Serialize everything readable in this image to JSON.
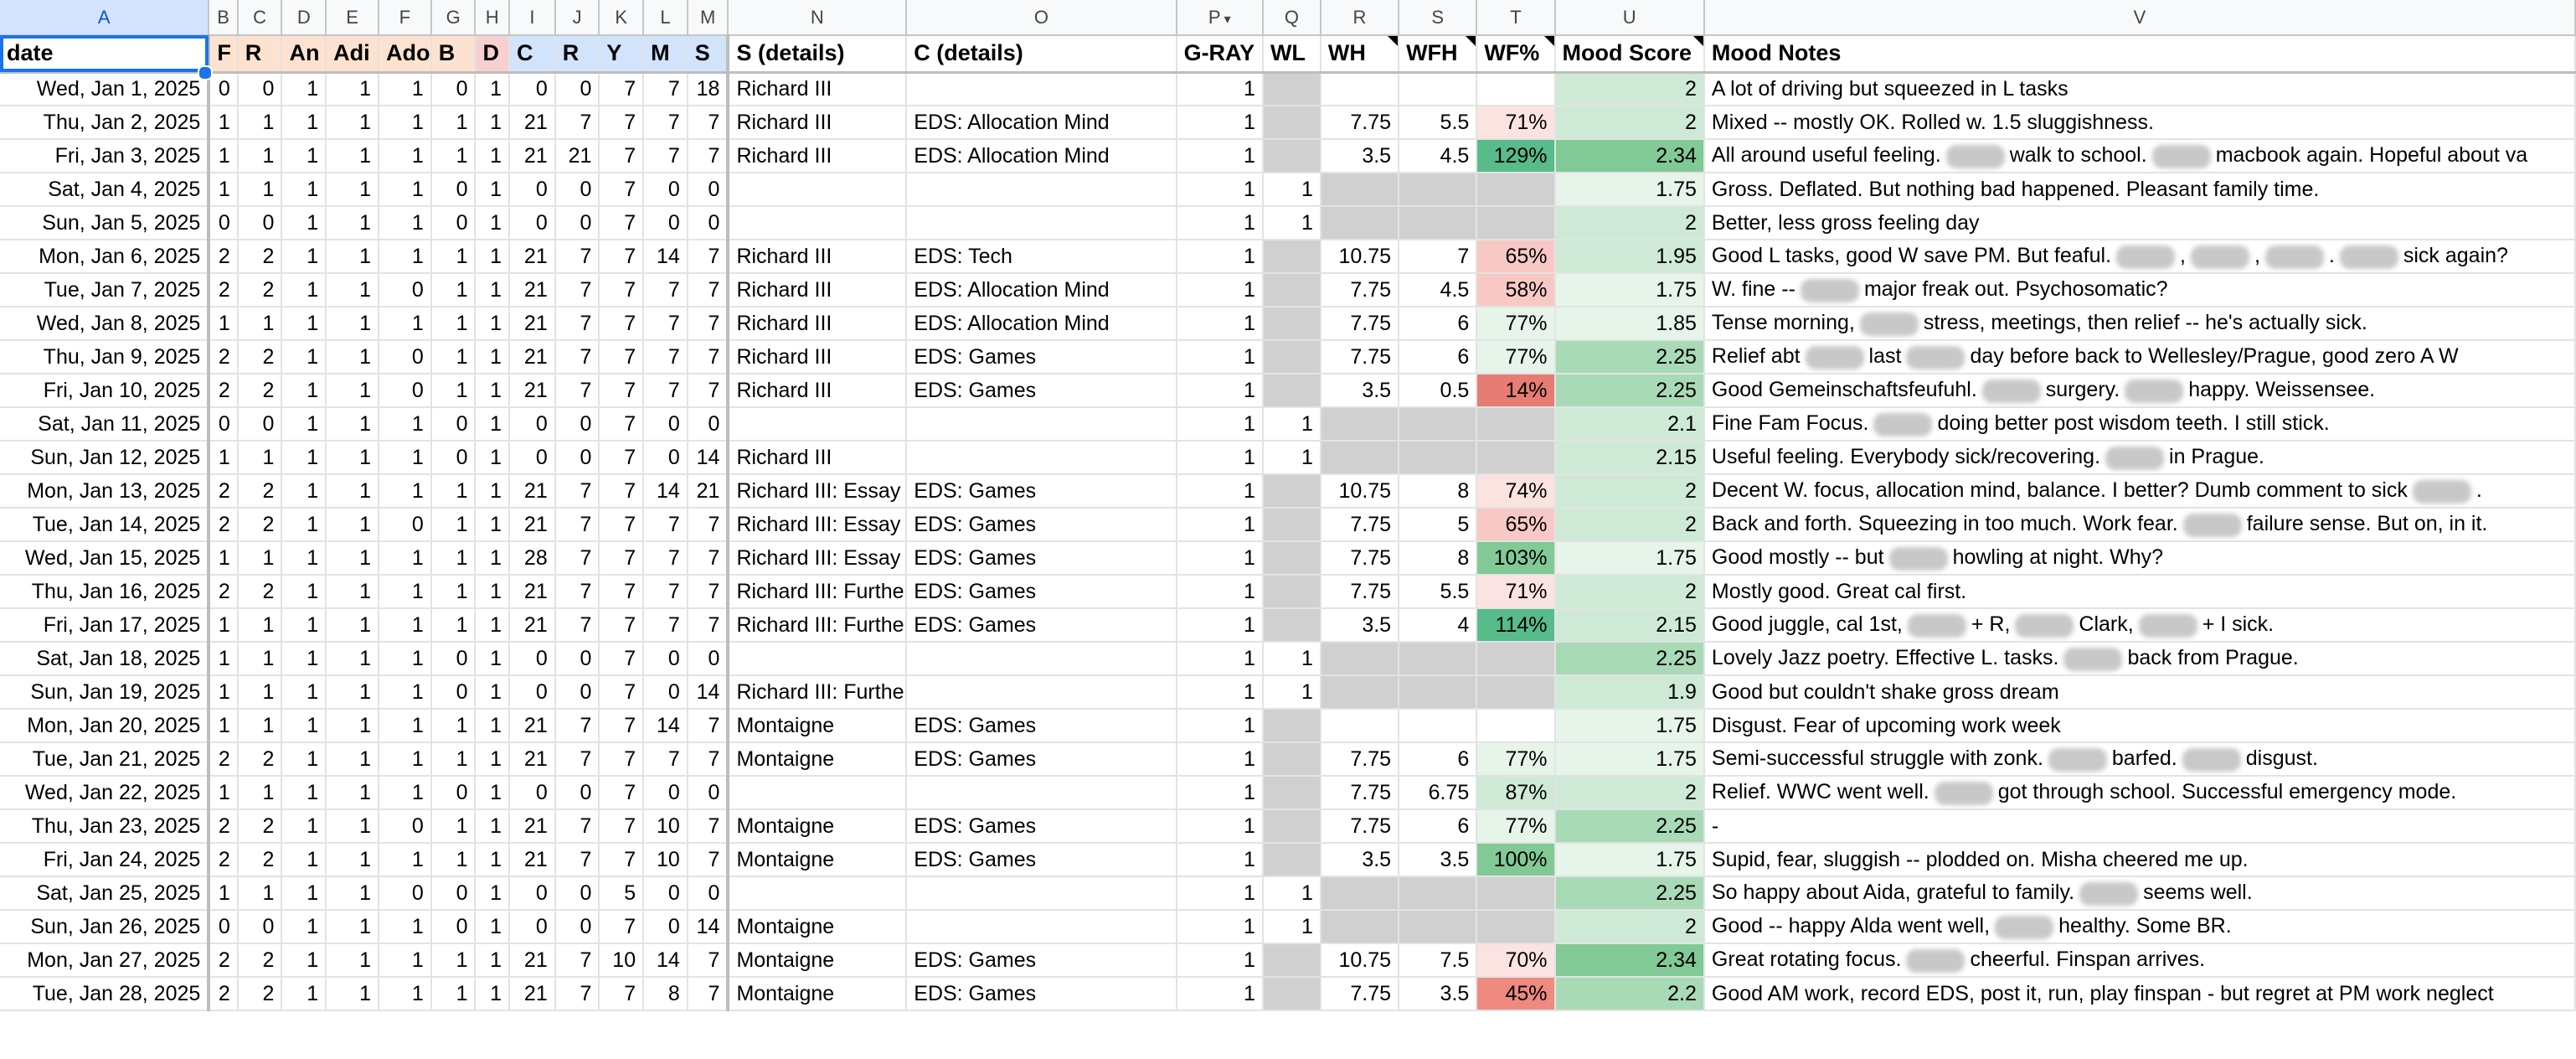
{
  "colors": {
    "peach": "#fde3cf",
    "red": "#f8d0cf",
    "blue": "#d2e3fc",
    "grey": "#d0d0d0",
    "green_scale": [
      "#e6f4ea",
      "#ceead6",
      "#a8dab5",
      "#81c995",
      "#57bb8a"
    ],
    "red_scale": [
      "#fbe3e1",
      "#f8c9c4",
      "#ee8a80",
      "#e67c73"
    ]
  },
  "columns": [
    "A",
    "B",
    "C",
    "D",
    "E",
    "F",
    "G",
    "H",
    "I",
    "J",
    "K",
    "L",
    "M",
    "N",
    "O",
    "P",
    "Q",
    "R",
    "S",
    "T",
    "U",
    "V"
  ],
  "headers": [
    "date",
    "F",
    "R",
    "An",
    "Adi",
    "Ado",
    "B",
    "D",
    "C",
    "R",
    "Y",
    "M",
    "S",
    "S (details)",
    "C (details)",
    "G-RAY",
    "WL",
    "WH",
    "WFH",
    "WF%",
    "Mood Score",
    "Mood Notes"
  ],
  "rows": [
    {
      "date": "Wed, Jan 1, 2025",
      "v": [
        "0",
        "0",
        "1",
        "1",
        "1",
        "0",
        "1",
        "0",
        "0",
        "7",
        "7",
        "18"
      ],
      "s": "Richard III",
      "c": "",
      "g": "1",
      "wl": "",
      "wh": "",
      "wfh": "",
      "wf": "",
      "mood": "2",
      "notes": [
        "A lot of driving but squeezed in L tasks"
      ]
    },
    {
      "date": "Thu, Jan 2, 2025",
      "v": [
        "1",
        "1",
        "1",
        "1",
        "1",
        "1",
        "1",
        "21",
        "7",
        "7",
        "7",
        "7"
      ],
      "s": "Richard III",
      "c": "EDS: Allocation Mind",
      "g": "1",
      "wl": "",
      "wh": "7.75",
      "wfh": "5.5",
      "wf": "71%",
      "mood": "2",
      "notes": [
        "Mixed -- mostly OK. Rolled w. 1.5 sluggishness."
      ]
    },
    {
      "date": "Fri, Jan 3, 2025",
      "v": [
        "1",
        "1",
        "1",
        "1",
        "1",
        "1",
        "1",
        "21",
        "21",
        "7",
        "7",
        "7"
      ],
      "s": "Richard III",
      "c": "EDS: Allocation Mind",
      "g": "1",
      "wl": "",
      "wh": "3.5",
      "wfh": "4.5",
      "wf": "129%",
      "mood": "2.34",
      "notes": [
        "All around useful feeling.",
        "walk to school.",
        "macbook again.  Hopeful about va"
      ]
    },
    {
      "date": "Sat, Jan 4, 2025",
      "v": [
        "1",
        "1",
        "1",
        "1",
        "1",
        "0",
        "1",
        "0",
        "0",
        "7",
        "0",
        "0"
      ],
      "s": "",
      "c": "",
      "g": "1",
      "wl": "1",
      "wh": "",
      "wfh": "",
      "wf": "",
      "mood": "1.75",
      "notes": [
        "Gross. Deflated. But nothing bad happened. Pleasant family time."
      ]
    },
    {
      "date": "Sun, Jan 5, 2025",
      "v": [
        "0",
        "0",
        "1",
        "1",
        "1",
        "0",
        "1",
        "0",
        "0",
        "7",
        "0",
        "0"
      ],
      "s": "",
      "c": "",
      "g": "1",
      "wl": "1",
      "wh": "",
      "wfh": "",
      "wf": "",
      "mood": "2",
      "notes": [
        "Better, less gross feeling day"
      ]
    },
    {
      "date": "Mon, Jan 6, 2025",
      "v": [
        "2",
        "2",
        "1",
        "1",
        "1",
        "1",
        "1",
        "21",
        "7",
        "7",
        "14",
        "7"
      ],
      "s": "Richard III",
      "c": "EDS: Tech",
      "g": "1",
      "wl": "",
      "wh": "10.75",
      "wfh": "7",
      "wf": "65%",
      "mood": "1.95",
      "notes": [
        "Good L tasks, good W save PM. But feaful.",
        ",",
        ",",
        ".",
        "sick again?"
      ]
    },
    {
      "date": "Tue, Jan 7, 2025",
      "v": [
        "2",
        "2",
        "1",
        "1",
        "0",
        "1",
        "1",
        "21",
        "7",
        "7",
        "7",
        "7"
      ],
      "s": "Richard III",
      "c": "EDS: Allocation Mind",
      "g": "1",
      "wl": "",
      "wh": "7.75",
      "wfh": "4.5",
      "wf": "58%",
      "mood": "1.75",
      "notes": [
        "W. fine --",
        "major freak out. Psychosomatic?"
      ]
    },
    {
      "date": "Wed, Jan 8, 2025",
      "v": [
        "1",
        "1",
        "1",
        "1",
        "1",
        "1",
        "1",
        "21",
        "7",
        "7",
        "7",
        "7"
      ],
      "s": "Richard III",
      "c": "EDS: Allocation Mind",
      "g": "1",
      "wl": "",
      "wh": "7.75",
      "wfh": "6",
      "wf": "77%",
      "mood": "1.85",
      "notes": [
        "Tense morning,",
        "stress, meetings, then relief -- he's actually sick."
      ]
    },
    {
      "date": "Thu, Jan 9, 2025",
      "v": [
        "2",
        "2",
        "1",
        "1",
        "0",
        "1",
        "1",
        "21",
        "7",
        "7",
        "7",
        "7"
      ],
      "s": "Richard III",
      "c": "EDS: Games",
      "g": "1",
      "wl": "",
      "wh": "7.75",
      "wfh": "6",
      "wf": "77%",
      "mood": "2.25",
      "notes": [
        "Relief abt",
        "last",
        "day before back to Wellesley/Prague, good zero A W"
      ]
    },
    {
      "date": "Fri, Jan 10, 2025",
      "v": [
        "2",
        "2",
        "1",
        "1",
        "0",
        "1",
        "1",
        "21",
        "7",
        "7",
        "7",
        "7"
      ],
      "s": "Richard III",
      "c": "EDS: Games",
      "g": "1",
      "wl": "",
      "wh": "3.5",
      "wfh": "0.5",
      "wf": "14%",
      "mood": "2.25",
      "notes": [
        "Good Gemeinschaftsfeufuhl.",
        "surgery.",
        "happy. Weissensee."
      ]
    },
    {
      "date": "Sat, Jan 11, 2025",
      "v": [
        "0",
        "0",
        "1",
        "1",
        "1",
        "0",
        "1",
        "0",
        "0",
        "7",
        "0",
        "0"
      ],
      "s": "",
      "c": "",
      "g": "1",
      "wl": "1",
      "wh": "",
      "wfh": "",
      "wf": "",
      "mood": "2.1",
      "notes": [
        "Fine Fam Focus.",
        "doing better post wisdom teeth. I still stick."
      ]
    },
    {
      "date": "Sun, Jan 12, 2025",
      "v": [
        "1",
        "1",
        "1",
        "1",
        "1",
        "0",
        "1",
        "0",
        "0",
        "7",
        "0",
        "14"
      ],
      "s": "Richard III",
      "c": "",
      "g": "1",
      "wl": "1",
      "wh": "",
      "wfh": "",
      "wf": "",
      "mood": "2.15",
      "notes": [
        "Useful feeling. Everybody sick/recovering.",
        "in Prague."
      ]
    },
    {
      "date": "Mon, Jan 13, 2025",
      "v": [
        "2",
        "2",
        "1",
        "1",
        "1",
        "1",
        "1",
        "21",
        "7",
        "7",
        "14",
        "21"
      ],
      "s": "Richard III: Essay",
      "c": "EDS: Games",
      "g": "1",
      "wl": "",
      "wh": "10.75",
      "wfh": "8",
      "wf": "74%",
      "mood": "2",
      "notes": [
        "Decent W. focus, allocation mind, balance. I better? Dumb comment to sick",
        "."
      ]
    },
    {
      "date": "Tue, Jan 14, 2025",
      "v": [
        "2",
        "2",
        "1",
        "1",
        "0",
        "1",
        "1",
        "21",
        "7",
        "7",
        "7",
        "7"
      ],
      "s": "Richard III: Essay",
      "c": "EDS: Games",
      "g": "1",
      "wl": "",
      "wh": "7.75",
      "wfh": "5",
      "wf": "65%",
      "mood": "2",
      "notes": [
        "Back and forth. Squeezing in too much. Work fear.",
        "failure sense. But on, in it."
      ]
    },
    {
      "date": "Wed, Jan 15, 2025",
      "v": [
        "1",
        "1",
        "1",
        "1",
        "1",
        "1",
        "1",
        "28",
        "7",
        "7",
        "7",
        "7"
      ],
      "s": "Richard III: Essay",
      "c": "EDS: Games",
      "g": "1",
      "wl": "",
      "wh": "7.75",
      "wfh": "8",
      "wf": "103%",
      "mood": "1.75",
      "notes": [
        "Good mostly -- but",
        "howling at night. Why?"
      ]
    },
    {
      "date": "Thu, Jan 16, 2025",
      "v": [
        "2",
        "2",
        "1",
        "1",
        "1",
        "1",
        "1",
        "21",
        "7",
        "7",
        "7",
        "7"
      ],
      "s": "Richard III: Further",
      "c": "EDS: Games",
      "g": "1",
      "wl": "",
      "wh": "7.75",
      "wfh": "5.5",
      "wf": "71%",
      "mood": "2",
      "notes": [
        "Mostly good. Great cal first."
      ]
    },
    {
      "date": "Fri, Jan 17, 2025",
      "v": [
        "1",
        "1",
        "1",
        "1",
        "1",
        "1",
        "1",
        "21",
        "7",
        "7",
        "7",
        "7"
      ],
      "s": "Richard III: Further",
      "c": "EDS: Games",
      "g": "1",
      "wl": "",
      "wh": "3.5",
      "wfh": "4",
      "wf": "114%",
      "mood": "2.15",
      "notes": [
        "Good juggle, cal 1st,",
        "+ R,",
        "Clark,",
        "+ I sick."
      ]
    },
    {
      "date": "Sat, Jan 18, 2025",
      "v": [
        "1",
        "1",
        "1",
        "1",
        "1",
        "0",
        "1",
        "0",
        "0",
        "7",
        "0",
        "0"
      ],
      "s": "",
      "c": "",
      "g": "1",
      "wl": "1",
      "wh": "",
      "wfh": "",
      "wf": "",
      "mood": "2.25",
      "notes": [
        "Lovely Jazz poetry. Effective L. tasks.",
        "back from Prague."
      ]
    },
    {
      "date": "Sun, Jan 19, 2025",
      "v": [
        "1",
        "1",
        "1",
        "1",
        "1",
        "0",
        "1",
        "0",
        "0",
        "7",
        "0",
        "14"
      ],
      "s": "Richard III: Further",
      "c": "",
      "g": "1",
      "wl": "1",
      "wh": "",
      "wfh": "",
      "wf": "",
      "mood": "1.9",
      "notes": [
        "Good but couldn't shake gross dream"
      ]
    },
    {
      "date": "Mon, Jan 20, 2025",
      "v": [
        "1",
        "1",
        "1",
        "1",
        "1",
        "1",
        "1",
        "21",
        "7",
        "7",
        "14",
        "7"
      ],
      "s": "Montaigne",
      "c": "EDS: Games",
      "g": "1",
      "wl": "",
      "wh": "",
      "wfh": "",
      "wf": "",
      "mood": "1.75",
      "notes": [
        "Disgust. Fear of upcoming work week"
      ]
    },
    {
      "date": "Tue, Jan 21, 2025",
      "v": [
        "2",
        "2",
        "1",
        "1",
        "1",
        "1",
        "1",
        "21",
        "7",
        "7",
        "7",
        "7"
      ],
      "s": "Montaigne",
      "c": "EDS: Games",
      "g": "1",
      "wl": "",
      "wh": "7.75",
      "wfh": "6",
      "wf": "77%",
      "mood": "1.75",
      "notes": [
        "Semi-successful struggle with zonk.",
        "barfed.",
        "disgust."
      ]
    },
    {
      "date": "Wed, Jan 22, 2025",
      "v": [
        "1",
        "1",
        "1",
        "1",
        "1",
        "0",
        "1",
        "0",
        "0",
        "7",
        "0",
        "0"
      ],
      "s": "",
      "c": "",
      "g": "1",
      "wl": "",
      "wh": "7.75",
      "wfh": "6.75",
      "wf": "87%",
      "mood": "2",
      "notes": [
        "Relief. WWC went well.",
        "got through school. Successful emergency mode."
      ]
    },
    {
      "date": "Thu, Jan 23, 2025",
      "v": [
        "2",
        "2",
        "1",
        "1",
        "0",
        "1",
        "1",
        "21",
        "7",
        "7",
        "10",
        "7"
      ],
      "s": "Montaigne",
      "c": "EDS: Games",
      "g": "1",
      "wl": "",
      "wh": "7.75",
      "wfh": "6",
      "wf": "77%",
      "mood": "2.25",
      "notes": [
        "-"
      ]
    },
    {
      "date": "Fri, Jan 24, 2025",
      "v": [
        "2",
        "2",
        "1",
        "1",
        "1",
        "1",
        "1",
        "21",
        "7",
        "7",
        "10",
        "7"
      ],
      "s": "Montaigne",
      "c": "EDS: Games",
      "g": "1",
      "wl": "",
      "wh": "3.5",
      "wfh": "3.5",
      "wf": "100%",
      "mood": "1.75",
      "notes": [
        "Supid, fear, sluggish -- plodded on. Misha cheered me up."
      ]
    },
    {
      "date": "Sat, Jan 25, 2025",
      "v": [
        "1",
        "1",
        "1",
        "1",
        "0",
        "0",
        "1",
        "0",
        "0",
        "5",
        "0",
        "0"
      ],
      "s": "",
      "c": "",
      "g": "1",
      "wl": "1",
      "wh": "",
      "wfh": "",
      "wf": "",
      "mood": "2.25",
      "notes": [
        "So happy about Aida, grateful to family.",
        "seems well."
      ]
    },
    {
      "date": "Sun, Jan 26, 2025",
      "v": [
        "0",
        "0",
        "1",
        "1",
        "1",
        "0",
        "1",
        "0",
        "0",
        "7",
        "0",
        "14"
      ],
      "s": "Montaigne",
      "c": "",
      "g": "1",
      "wl": "1",
      "wh": "",
      "wfh": "",
      "wf": "",
      "mood": "2",
      "notes": [
        "Good -- happy Alda went well,",
        "healthy. Some BR."
      ]
    },
    {
      "date": "Mon, Jan 27, 2025",
      "v": [
        "2",
        "2",
        "1",
        "1",
        "1",
        "1",
        "1",
        "21",
        "7",
        "10",
        "14",
        "7"
      ],
      "s": "Montaigne",
      "c": "EDS: Games",
      "g": "1",
      "wl": "",
      "wh": "10.75",
      "wfh": "7.5",
      "wf": "70%",
      "mood": "2.34",
      "notes": [
        "Great rotating focus.",
        "cheerful. Finspan arrives."
      ]
    },
    {
      "date": "Tue, Jan 28, 2025",
      "v": [
        "2",
        "2",
        "1",
        "1",
        "1",
        "1",
        "1",
        "21",
        "7",
        "7",
        "8",
        "7"
      ],
      "s": "Montaigne",
      "c": "EDS: Games",
      "g": "1",
      "wl": "",
      "wh": "7.75",
      "wfh": "3.5",
      "wf": "45%",
      "mood": "2.2",
      "notes": [
        "Good AM work, record EDS, post it, run, play finspan - but regret at PM work neglect"
      ]
    }
  ]
}
